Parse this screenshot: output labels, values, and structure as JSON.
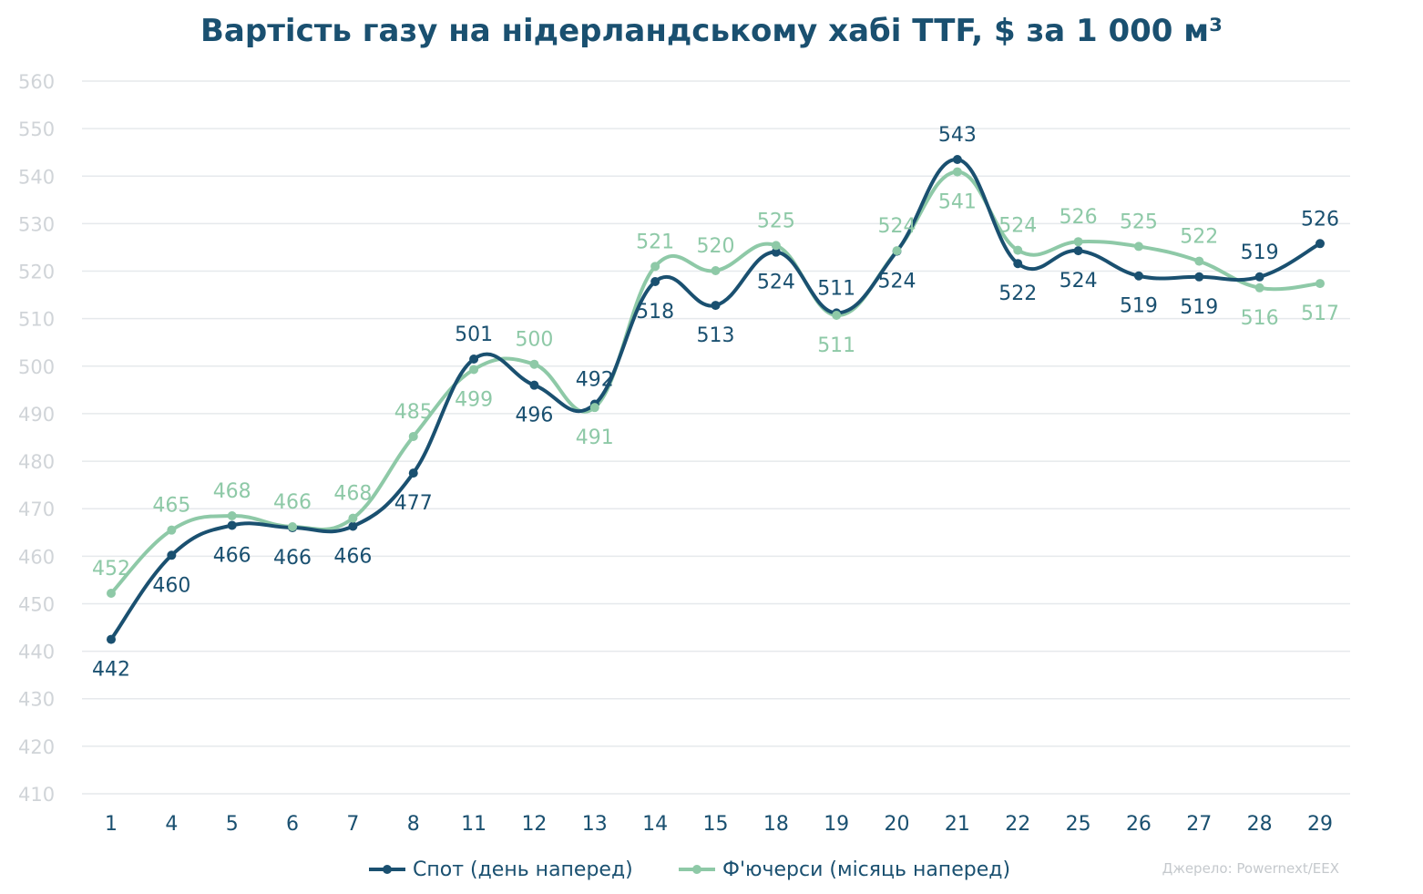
{
  "chart_data": {
    "type": "line",
    "title": "Вартість газу на нідерландському хабі TTF, $ за 1 000 м³",
    "categories": [
      "1",
      "4",
      "5",
      "6",
      "7",
      "8",
      "11",
      "12",
      "13",
      "14",
      "15",
      "18",
      "19",
      "20",
      "21",
      "22",
      "25",
      "26",
      "27",
      "28",
      "29"
    ],
    "ylim": [
      410,
      560
    ],
    "yticks": [
      560,
      550,
      540,
      530,
      520,
      510,
      500,
      490,
      480,
      470,
      460,
      450,
      440,
      430,
      420,
      410
    ],
    "grid": true,
    "legend_position": "bottom",
    "series": [
      {
        "name": "Спот (день наперед)",
        "color": "#1a5070",
        "values": [
          442.5,
          460.2,
          466.5,
          466.0,
          466.3,
          477.5,
          501.5,
          496.0,
          492.0,
          517.8,
          512.8,
          524.0,
          511.2,
          524.2,
          543.5,
          521.6,
          524.3,
          519.0,
          518.8,
          518.8,
          525.8
        ],
        "labels": [
          "442",
          "460",
          "466",
          "466",
          "466",
          "477",
          "501",
          "496",
          "492",
          "518",
          "513",
          "524",
          "511",
          "524",
          "543",
          "522",
          "524",
          "519",
          "519",
          "519",
          "526"
        ],
        "label_pos": [
          "below",
          "below",
          "below",
          "below",
          "below",
          "below",
          "above",
          "below",
          "above",
          "below",
          "below",
          "below",
          "above",
          "below",
          "above",
          "below",
          "below",
          "below",
          "below",
          "above",
          "above"
        ]
      },
      {
        "name": "Ф'ючерси (місяць наперед)",
        "color": "#8ec9a7",
        "values": [
          452.2,
          465.5,
          468.5,
          466.2,
          468.0,
          485.2,
          499.3,
          500.4,
          491.3,
          521.0,
          520.1,
          525.4,
          510.7,
          524.3,
          540.9,
          524.4,
          526.2,
          525.2,
          522.1,
          516.5,
          517.4
        ],
        "labels": [
          "452",
          "465",
          "468",
          "466",
          "468",
          "485",
          "499",
          "500",
          "491",
          "521",
          "520",
          "525",
          "511",
          "524",
          "541",
          "524",
          "526",
          "525",
          "522",
          "516",
          "517"
        ],
        "label_pos": [
          "above",
          "above",
          "above",
          "above",
          "above",
          "above",
          "below",
          "above",
          "below",
          "above",
          "above",
          "above",
          "below",
          "above",
          "below",
          "above",
          "above",
          "above",
          "above",
          "below",
          "below"
        ]
      }
    ],
    "source": "Джерело: Powernext/EEX"
  }
}
